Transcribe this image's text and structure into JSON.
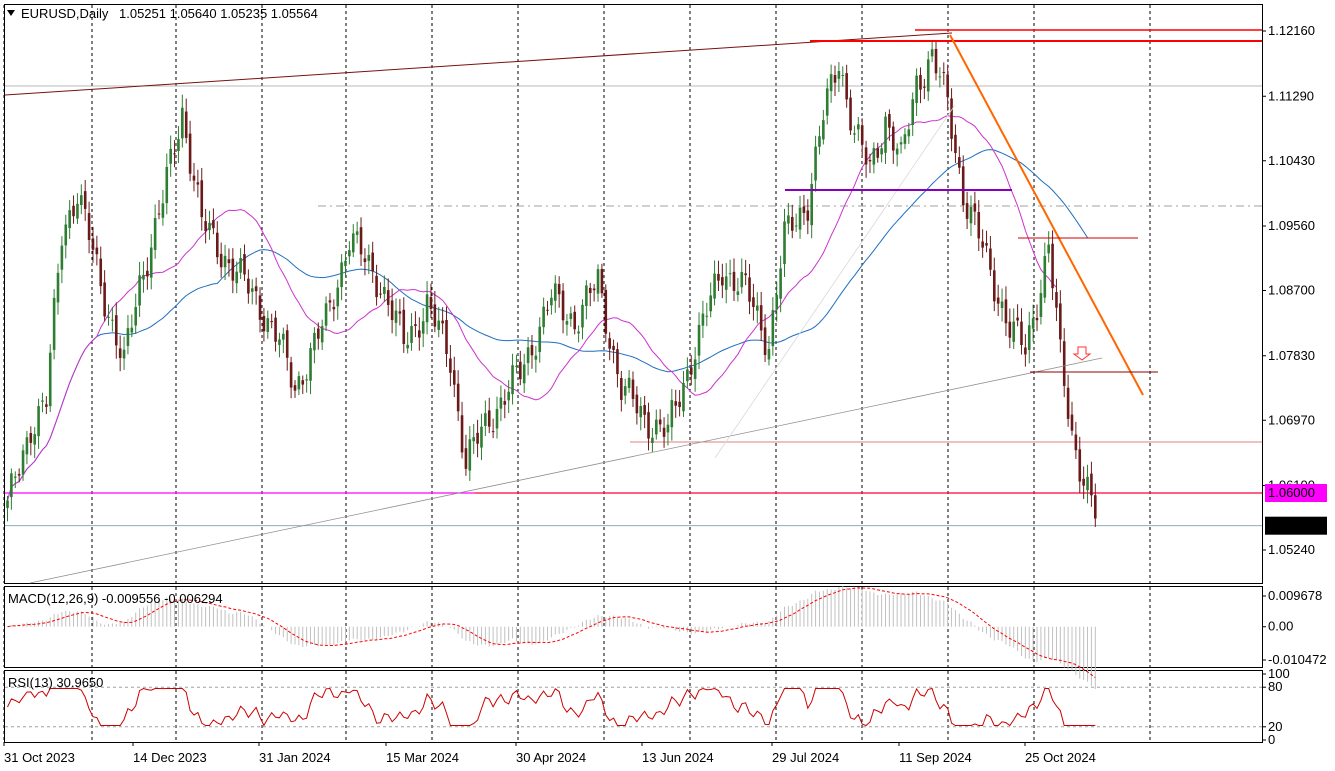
{
  "window": {
    "symbol_title": "EURUSD,Daily",
    "ohlc_text": "1.05251 1.05640 1.05235 1.05564"
  },
  "chart_data": [
    {
      "type": "candlestick",
      "title": "EURUSD,Daily  1.05251 1.05640 1.05235 1.05564",
      "price_ticks": [
        "1.12160",
        "1.11290",
        "1.10430",
        "1.09560",
        "1.08700",
        "1.07830",
        "1.06970",
        "1.06100",
        "1.05240"
      ],
      "ylim": [
        1.047,
        1.1228
      ],
      "date_ticks": [
        "31 Oct 2023",
        "14 Dec 2023",
        "31 Jan 2024",
        "15 Mar 2024",
        "30 Apr 2024",
        "13 Jun 2024",
        "29 Jul 2024",
        "11 Sep 2024",
        "25 Oct 2024"
      ],
      "current_price": "1.05564",
      "marked_level": "1.06000",
      "colors": {
        "up": "#2e7d32",
        "down": "#6b1a1a",
        "ma_fast": "#cc33cc",
        "ma_slow": "#1f6fc0",
        "level_magenta": "#ff00ff",
        "level_red": "#ff0000",
        "trend_orange": "#ff6600"
      },
      "waypoints": [
        {
          "i": 0,
          "p": 1.058
        },
        {
          "i": 6,
          "p": 1.069
        },
        {
          "i": 10,
          "p": 1.072
        },
        {
          "i": 14,
          "p": 1.095
        },
        {
          "i": 18,
          "p": 1.1
        },
        {
          "i": 24,
          "p": 1.088
        },
        {
          "i": 30,
          "p": 1.077
        },
        {
          "i": 34,
          "p": 1.088
        },
        {
          "i": 40,
          "p": 1.099
        },
        {
          "i": 45,
          "p": 1.111
        },
        {
          "i": 50,
          "p": 1.096
        },
        {
          "i": 58,
          "p": 1.09
        },
        {
          "i": 64,
          "p": 1.086
        },
        {
          "i": 70,
          "p": 1.08
        },
        {
          "i": 74,
          "p": 1.074
        },
        {
          "i": 82,
          "p": 1.083
        },
        {
          "i": 88,
          "p": 1.094
        },
        {
          "i": 96,
          "p": 1.088
        },
        {
          "i": 102,
          "p": 1.08
        },
        {
          "i": 108,
          "p": 1.085
        },
        {
          "i": 114,
          "p": 1.078
        },
        {
          "i": 118,
          "p": 1.064
        },
        {
          "i": 124,
          "p": 1.07
        },
        {
          "i": 132,
          "p": 1.076
        },
        {
          "i": 140,
          "p": 1.086
        },
        {
          "i": 146,
          "p": 1.083
        },
        {
          "i": 152,
          "p": 1.088
        },
        {
          "i": 158,
          "p": 1.074
        },
        {
          "i": 164,
          "p": 1.07
        },
        {
          "i": 170,
          "p": 1.068
        },
        {
          "i": 176,
          "p": 1.078
        },
        {
          "i": 184,
          "p": 1.09
        },
        {
          "i": 190,
          "p": 1.087
        },
        {
          "i": 196,
          "p": 1.08
        },
        {
          "i": 200,
          "p": 1.094
        },
        {
          "i": 206,
          "p": 1.099
        },
        {
          "i": 210,
          "p": 1.11
        },
        {
          "i": 214,
          "p": 1.118
        },
        {
          "i": 218,
          "p": 1.108
        },
        {
          "i": 222,
          "p": 1.103
        },
        {
          "i": 226,
          "p": 1.11
        },
        {
          "i": 230,
          "p": 1.104
        },
        {
          "i": 234,
          "p": 1.115
        },
        {
          "i": 238,
          "p": 1.118
        },
        {
          "i": 242,
          "p": 1.112
        },
        {
          "i": 246,
          "p": 1.1
        },
        {
          "i": 250,
          "p": 1.094
        },
        {
          "i": 254,
          "p": 1.088
        },
        {
          "i": 258,
          "p": 1.082
        },
        {
          "i": 262,
          "p": 1.079
        },
        {
          "i": 266,
          "p": 1.088
        },
        {
          "i": 268,
          "p": 1.093
        },
        {
          "i": 271,
          "p": 1.078
        },
        {
          "i": 274,
          "p": 1.068
        },
        {
          "i": 277,
          "p": 1.062
        },
        {
          "i": 280,
          "p": 1.057
        }
      ],
      "bar_count": 281
    },
    {
      "type": "bar",
      "title": "MACD(12,26,9) -0.009556 -0.006294",
      "yticks": [
        "0.009678",
        "0.00",
        "-0.010472"
      ],
      "ylim": [
        -0.0125,
        0.0118
      ],
      "colors": {
        "histogram": "#c0c0c0",
        "signal": "#ff0000"
      }
    },
    {
      "type": "line",
      "title": "RSI(13) 30.9650",
      "yticks": [
        "100",
        "80",
        "20",
        "0"
      ],
      "levels": [
        80,
        20
      ],
      "ylim": [
        0,
        100
      ],
      "colors": {
        "rsi": "#cc0000"
      }
    }
  ]
}
